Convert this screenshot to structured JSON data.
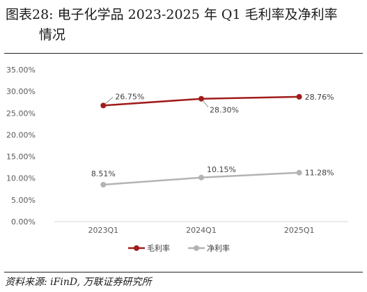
{
  "title": {
    "line1": "图表28:  电子化学品 2023-2025 年 Q1 毛利率及净利率",
    "line2": "情况"
  },
  "source": "资料来源:  iFinD,  万联证券研究所",
  "colors": {
    "gross": "#a11b1b",
    "net": "#b3b3b3",
    "axis_text": "#595959",
    "grid": "#d9d9d9"
  },
  "chart_data": {
    "type": "line",
    "categories": [
      "2023Q1",
      "2024Q1",
      "2025Q1"
    ],
    "series": [
      {
        "name": "毛利率",
        "values": [
          26.75,
          28.3,
          28.76
        ],
        "labels": [
          "26.75%",
          "28.30%",
          "28.76%"
        ]
      },
      {
        "name": "净利率",
        "values": [
          8.51,
          10.15,
          11.28
        ],
        "labels": [
          "8.51%",
          "10.15%",
          "11.28%"
        ]
      }
    ],
    "yticks": [
      "0.00%",
      "5.00%",
      "10.00%",
      "15.00%",
      "20.00%",
      "25.00%",
      "30.00%",
      "35.00%"
    ],
    "ylim": [
      0,
      35
    ],
    "grid": false,
    "legend": "bottom"
  }
}
